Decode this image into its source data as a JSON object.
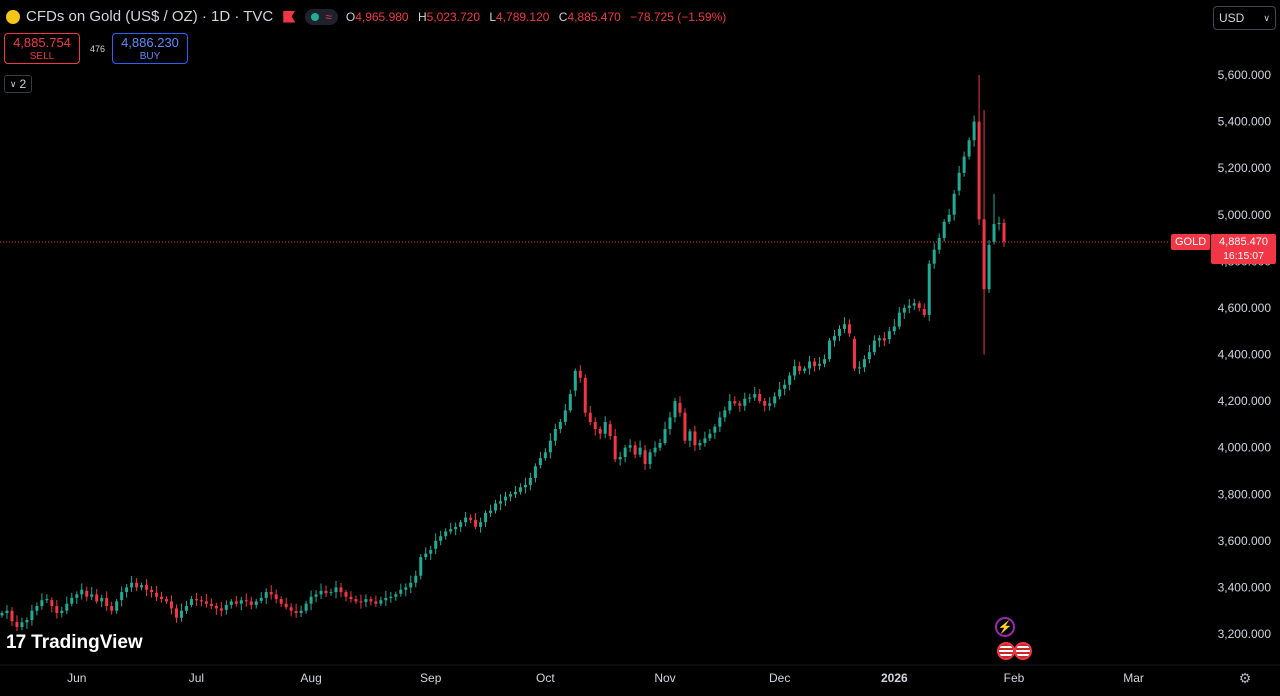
{
  "header": {
    "title": "CFDs on Gold (US$ / OZ) · 1D · TVC",
    "ohlc": [
      {
        "k": "O",
        "v": "4,965.980"
      },
      {
        "k": "H",
        "v": "5,023.720"
      },
      {
        "k": "L",
        "v": "4,789.120"
      },
      {
        "k": "C",
        "v": "4,885.470"
      }
    ],
    "change": "−78.725 (−1.59%)"
  },
  "trade": {
    "sell_price": "4,885.754",
    "sell_label": "SELL",
    "spread": "476",
    "buy_price": "4,886.230",
    "buy_label": "BUY"
  },
  "indicators_toggle": "2",
  "currency": "USD",
  "price_tag": {
    "symbol": "GOLD",
    "price": "4,885.470",
    "countdown": "16:15:07"
  },
  "brand": "TradingView",
  "colors": {
    "up": "#22ab94",
    "down": "#f23645",
    "price_line": "#f23645",
    "axis_text": "#d1d4dc"
  },
  "chart_data": {
    "type": "candlestick",
    "title": "CFDs on Gold (US$ / OZ) · 1D · TVC",
    "ylim": [
      3150,
      5700
    ],
    "y_ticks": [
      "3,200.000",
      "3,400.000",
      "3,600.000",
      "3,800.000",
      "4,000.000",
      "4,200.000",
      "4,400.000",
      "4,600.000",
      "4,800.000",
      "5,000.000",
      "5,200.000",
      "5,400.000",
      "5,600.000"
    ],
    "y_tick_values": [
      3200,
      3400,
      3600,
      3800,
      4000,
      4200,
      4400,
      4600,
      4800,
      5000,
      5200,
      5400,
      5600
    ],
    "x_ticks": [
      "Jun",
      "Jul",
      "Aug",
      "Sep",
      "Oct",
      "Nov",
      "Dec",
      "2026",
      "Feb",
      "Mar"
    ],
    "x_tick_index": [
      15,
      39,
      62,
      86,
      109,
      133,
      156,
      179,
      203,
      227
    ],
    "close_series": [
      3290,
      3300,
      3255,
      3230,
      3250,
      3260,
      3300,
      3320,
      3345,
      3350,
      3320,
      3290,
      3300,
      3330,
      3355,
      3370,
      3390,
      3360,
      3370,
      3340,
      3355,
      3320,
      3300,
      3340,
      3380,
      3400,
      3420,
      3400,
      3410,
      3390,
      3380,
      3360,
      3350,
      3340,
      3310,
      3270,
      3300,
      3320,
      3350,
      3345,
      3340,
      3330,
      3320,
      3310,
      3300,
      3325,
      3340,
      3330,
      3345,
      3340,
      3325,
      3340,
      3355,
      3380,
      3370,
      3350,
      3330,
      3315,
      3300,
      3290,
      3300,
      3330,
      3360,
      3370,
      3385,
      3375,
      3380,
      3400,
      3380,
      3360,
      3350,
      3340,
      3335,
      3350,
      3340,
      3330,
      3345,
      3355,
      3360,
      3370,
      3390,
      3400,
      3420,
      3450,
      3530,
      3545,
      3560,
      3600,
      3620,
      3640,
      3650,
      3660,
      3680,
      3700,
      3690,
      3660,
      3680,
      3720,
      3730,
      3760,
      3770,
      3790,
      3800,
      3810,
      3830,
      3840,
      3870,
      3920,
      3955,
      3980,
      4030,
      4080,
      4110,
      4160,
      4230,
      4330,
      4300,
      4150,
      4110,
      4080,
      4060,
      4110,
      4050,
      3950,
      3960,
      4000,
      4010,
      3970,
      4000,
      3930,
      3980,
      4000,
      4020,
      4080,
      4130,
      4200,
      4150,
      4030,
      4070,
      4010,
      4020,
      4040,
      4060,
      4090,
      4130,
      4160,
      4200,
      4190,
      4180,
      4210,
      4215,
      4230,
      4200,
      4180,
      4190,
      4220,
      4250,
      4270,
      4310,
      4350,
      4330,
      4340,
      4370,
      4350,
      4360,
      4380,
      4460,
      4480,
      4510,
      4530,
      4490,
      4340,
      4345,
      4380,
      4410,
      4460,
      4470,
      4460,
      4500,
      4520,
      4580,
      4600,
      4610,
      4620,
      4600,
      4570,
      4790,
      4850,
      4900,
      4970,
      5000,
      5090,
      5180,
      5250,
      5320,
      5400,
      4980,
      4680,
      4870,
      4960,
      4965,
      4885
    ],
    "date_range": [
      "~May 2025",
      "Feb 2026"
    ]
  }
}
